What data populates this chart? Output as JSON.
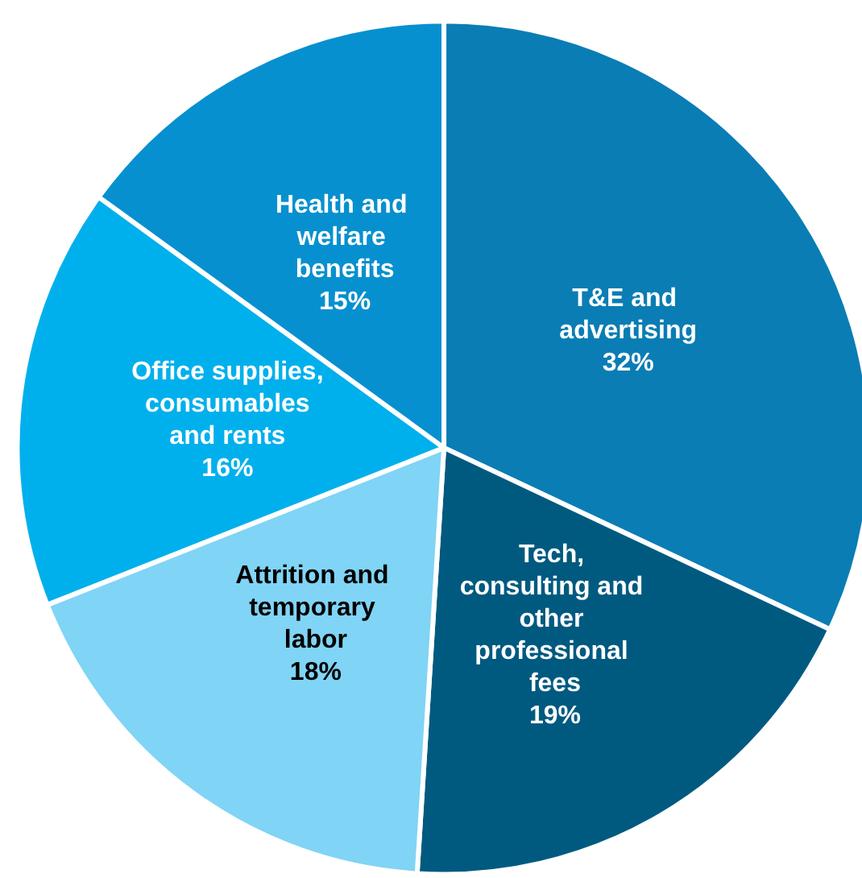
{
  "chart_data": {
    "type": "pie",
    "categories": [
      "T&E and advertising",
      "Tech, consulting and other professional fees",
      "Attrition and temporary labor",
      "Office supplies, consumables and rents",
      "Health and welfare benefits"
    ],
    "values": [
      32,
      19,
      18,
      16,
      15
    ],
    "value_labels": [
      "32%",
      "19%",
      "18%",
      "16%",
      "15%"
    ],
    "colors": [
      "#0a7db4",
      "#005a80",
      "#80d4f5",
      "#00b0ec",
      "#0790cf"
    ],
    "legend": false
  }
}
